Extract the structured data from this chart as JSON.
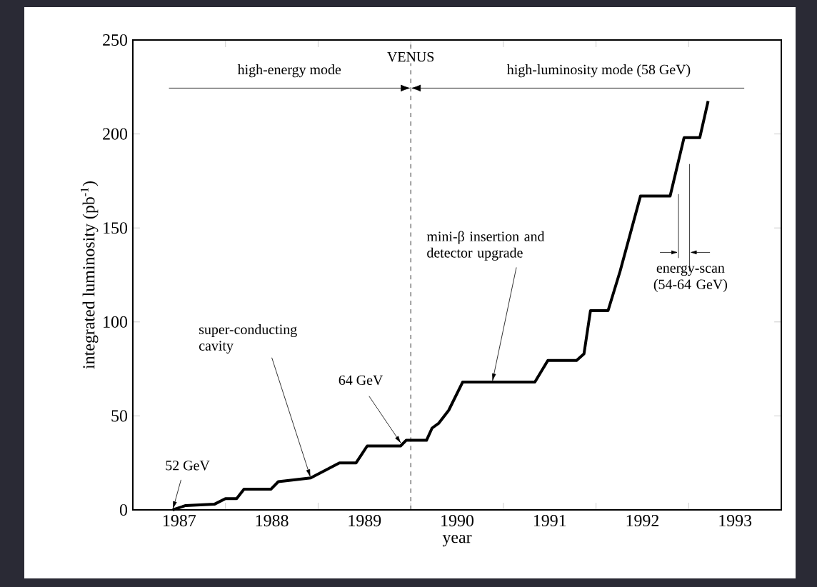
{
  "chart_data": {
    "type": "line",
    "xlabel": "year",
    "ylabel": "integrated luminosity (pb$^{-1}$)",
    "x": [
      1987.43,
      1987.57,
      1987.88,
      1988.0,
      1988.12,
      1988.2,
      1988.49,
      1988.57,
      1988.92,
      1989.23,
      1989.41,
      1989.53,
      1989.89,
      1989.95,
      1990.17,
      1990.23,
      1990.3,
      1990.41,
      1990.56,
      1991.34,
      1991.48,
      1991.79,
      1991.87,
      1991.94,
      1992.13,
      1992.26,
      1992.48,
      1992.8,
      1992.95,
      1993.12,
      1993.21
    ],
    "series": [
      {
        "color": "#000000",
        "values": [
          0,
          2.3,
          3,
          6,
          6,
          11,
          11,
          15,
          17,
          25,
          25,
          34,
          34,
          37,
          37,
          43.5,
          46,
          53,
          68,
          68,
          79.5,
          79.5,
          83,
          106,
          106,
          127,
          167,
          167,
          198,
          198,
          217.5
        ]
      }
    ],
    "xlim": [
      1987,
      1994
    ],
    "ylim": [
      0,
      250
    ],
    "xticks": [
      {
        "value": 1987.5,
        "label": "1987"
      },
      {
        "value": 1988.5,
        "label": "1988"
      },
      {
        "value": 1989.5,
        "label": "1989"
      },
      {
        "value": 1990.5,
        "label": "1990"
      },
      {
        "value": 1991.5,
        "label": "1991"
      },
      {
        "value": 1992.5,
        "label": "1992"
      },
      {
        "value": 1993.5,
        "label": "1993"
      },
      {
        "value": 1988,
        "label": null
      },
      {
        "value": 1989,
        "label": null
      },
      {
        "value": 1990,
        "label": null
      },
      {
        "value": 1991,
        "label": null
      },
      {
        "value": 1992,
        "label": null
      },
      {
        "value": 1993,
        "label": null
      }
    ],
    "yticks": [
      0,
      50,
      100,
      150,
      200,
      250
    ],
    "ref_lines": [
      {
        "axis": "x",
        "value": 1990,
        "label": "VENUS",
        "line_style": "dashed"
      }
    ],
    "annotations": [
      "high-energy mode",
      "high-luminosity mode (58 GeV)",
      {
        "text": "52 GeV",
        "x": 1987.43,
        "y": 0
      },
      {
        "text": "super-conducting cavity",
        "x": 1988.92,
        "y": 17
      },
      {
        "text": "64 GeV",
        "x": 1989.9,
        "y": 35
      },
      {
        "text": "mini-β insertion and detector upgrade",
        "x": 1990.88,
        "y": 68
      },
      "energy-scan (54-64 GeV)"
    ],
    "marker": "none",
    "line_style": "solid"
  }
}
